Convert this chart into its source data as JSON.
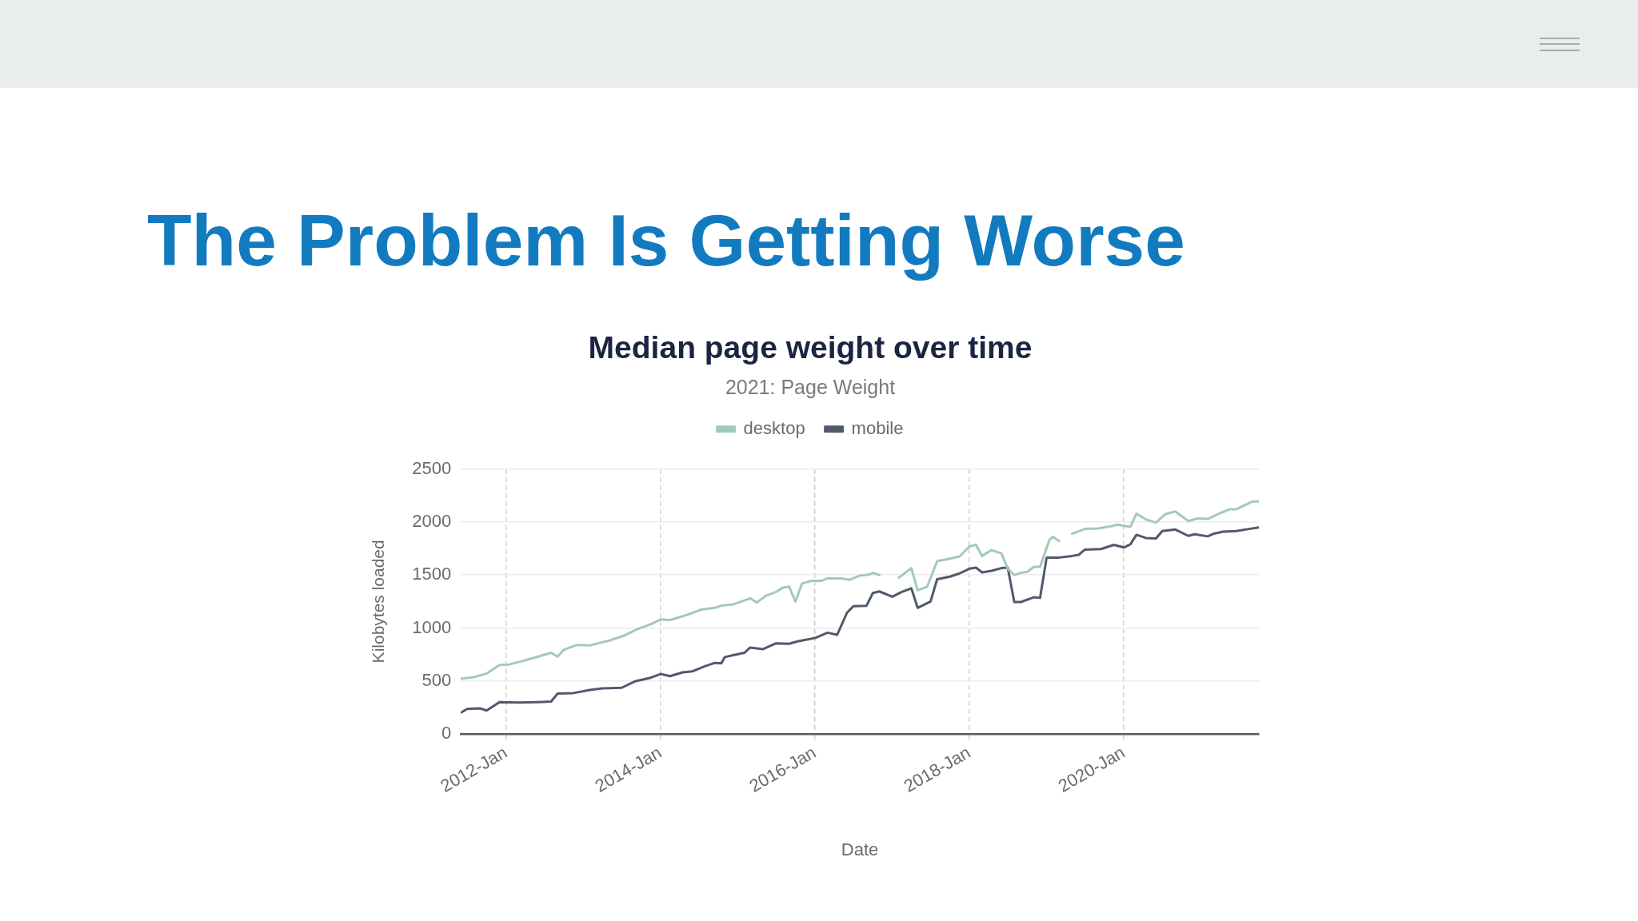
{
  "chart_data": {
    "type": "line",
    "title": "Median page weight over time",
    "subtitle": "2021: Page Weight",
    "xlabel": "Date",
    "ylabel": "Kilobytes loaded",
    "annotations": [
      "The Problem Is Getting Worse"
    ],
    "xlim": [
      "2011-06-01",
      "2021-10-01"
    ],
    "xticks": [
      {
        "value": "2012-01",
        "label": "2012-Jan"
      },
      {
        "value": "2014-01",
        "label": "2014-Jan"
      },
      {
        "value": "2016-01",
        "label": "2016-Jan"
      },
      {
        "value": "2018-01",
        "label": "2018-Jan"
      },
      {
        "value": "2020-01",
        "label": "2020-Jan"
      }
    ],
    "ylim": [
      0,
      2500
    ],
    "yticks": [
      0,
      500,
      1000,
      1500,
      2000,
      2500
    ],
    "grid": true,
    "legend": "top",
    "marker": "none",
    "line_style": "solid",
    "series": [
      {
        "name": "desktop",
        "color": "#a3c9b9",
        "x": [
          "2011-06-01",
          "2011-08-01",
          "2011-10-01",
          "2011-12-01",
          "2012-01-15",
          "2012-03-15",
          "2012-06-01",
          "2012-08-01",
          "2012-09-01",
          "2012-10-01",
          "2012-12-01",
          "2013-02-01",
          "2013-05-01",
          "2013-07-15",
          "2013-09-15",
          "2013-11-15",
          "2014-01-01",
          "2014-02-15",
          "2014-05-01",
          "2014-07-15",
          "2014-09-15",
          "2014-10-15",
          "2014-12-15",
          "2015-03-01",
          "2015-04-01",
          "2015-05-15",
          "2015-07-01",
          "2015-08-01",
          "2015-09-01",
          "2015-10-01",
          "2015-11-01",
          "2015-12-15",
          "2016-02-01",
          "2016-03-01",
          "2016-05-15",
          "2016-06-15",
          "2016-08-01",
          "2016-09-15",
          "2016-10-01",
          "2016-11-01",
          "2016-12-15",
          "2017-02-01",
          "2017-04-01",
          "2017-05-01",
          "2017-06-15",
          "2017-08-01",
          "2017-10-01",
          "2017-11-15",
          "2018-01-01",
          "2018-02-01",
          "2018-03-01",
          "2018-04-15",
          "2018-06-01",
          "2018-07-01",
          "2018-08-01",
          "2018-09-01",
          "2018-10-01",
          "2018-11-01",
          "2018-12-01",
          "2019-01-15",
          "2019-02-01",
          "2019-03-01",
          "2019-04-01",
          "2019-05-01",
          "2019-07-01",
          "2019-09-01",
          "2019-11-01",
          "2019-12-01",
          "2020-02-01",
          "2020-03-01",
          "2020-04-15",
          "2020-06-01",
          "2020-07-15",
          "2020-09-01",
          "2020-11-01",
          "2020-12-15",
          "2021-02-01",
          "2021-04-01",
          "2021-05-15",
          "2021-06-15",
          "2021-08-01",
          "2021-09-01",
          "2021-10-01"
        ],
        "values": [
          520,
          535,
          570,
          650,
          655,
          685,
          730,
          765,
          730,
          795,
          840,
          835,
          880,
          930,
          990,
          1035,
          1080,
          1075,
          1120,
          1175,
          1190,
          1210,
          1225,
          1280,
          1240,
          1305,
          1340,
          1380,
          1390,
          1250,
          1420,
          1445,
          1445,
          1470,
          1465,
          1455,
          1495,
          1505,
          1520,
          1500,
          null,
          1475,
          1565,
          1355,
          1390,
          1630,
          1655,
          1675,
          1770,
          1785,
          1680,
          1735,
          1705,
          1560,
          1500,
          1520,
          1530,
          1575,
          1580,
          1835,
          1860,
          1820,
          null,
          1890,
          1935,
          1940,
          1960,
          1975,
          1955,
          2080,
          2025,
          1995,
          2075,
          2100,
          2010,
          2035,
          2030,
          2085,
          2120,
          2120,
          2165,
          2195,
          2195
        ]
      },
      {
        "name": "mobile",
        "color": "#505a6b",
        "x": [
          "2011-06-01",
          "2011-07-01",
          "2011-09-01",
          "2011-10-01",
          "2011-12-01",
          "2012-03-01",
          "2012-06-01",
          "2012-08-01",
          "2012-09-01",
          "2012-11-15",
          "2013-02-01",
          "2013-04-01",
          "2013-07-01",
          "2013-09-01",
          "2013-11-15",
          "2014-01-01",
          "2014-02-15",
          "2014-04-15",
          "2014-06-01",
          "2014-08-01",
          "2014-09-15",
          "2014-10-15",
          "2014-11-01",
          "2014-12-15",
          "2015-02-01",
          "2015-03-01",
          "2015-05-01",
          "2015-07-01",
          "2015-09-01",
          "2015-10-15",
          "2016-01-01",
          "2016-03-01",
          "2016-04-15",
          "2016-06-01",
          "2016-07-01",
          "2016-09-01",
          "2016-10-01",
          "2016-11-01",
          "2017-01-01",
          "2017-02-15",
          "2017-04-01",
          "2017-05-01",
          "2017-07-01",
          "2017-08-01",
          "2017-10-01",
          "2017-11-15",
          "2018-01-01",
          "2018-02-01",
          "2018-03-01",
          "2018-04-15",
          "2018-06-01",
          "2018-07-01",
          "2018-08-01",
          "2018-09-01",
          "2018-11-01",
          "2018-12-01",
          "2019-01-01",
          "2019-03-01",
          "2019-05-01",
          "2019-06-01",
          "2019-07-01",
          "2019-09-15",
          "2019-11-15",
          "2020-01-01",
          "2020-02-01",
          "2020-03-01",
          "2020-04-15",
          "2020-06-01",
          "2020-07-01",
          "2020-09-01",
          "2020-11-01",
          "2020-12-01",
          "2021-02-01",
          "2021-03-01",
          "2021-04-15",
          "2021-06-15",
          "2021-08-15",
          "2021-10-01"
        ],
        "values": [
          200,
          235,
          240,
          220,
          300,
          295,
          300,
          305,
          380,
          385,
          415,
          430,
          435,
          495,
          530,
          565,
          545,
          580,
          590,
          640,
          670,
          665,
          725,
          745,
          765,
          815,
          800,
          855,
          850,
          875,
          905,
          955,
          935,
          1145,
          1205,
          1210,
          1330,
          1345,
          1295,
          1340,
          1375,
          1190,
          1250,
          1460,
          1485,
          1515,
          1560,
          1570,
          1525,
          1540,
          1565,
          1570,
          1245,
          1245,
          1290,
          1285,
          1665,
          1665,
          1680,
          1690,
          1740,
          1745,
          1785,
          1760,
          1790,
          1880,
          1850,
          1845,
          1915,
          1930,
          1870,
          1885,
          1865,
          1890,
          1910,
          1915,
          1935,
          1950
        ]
      }
    ]
  }
}
